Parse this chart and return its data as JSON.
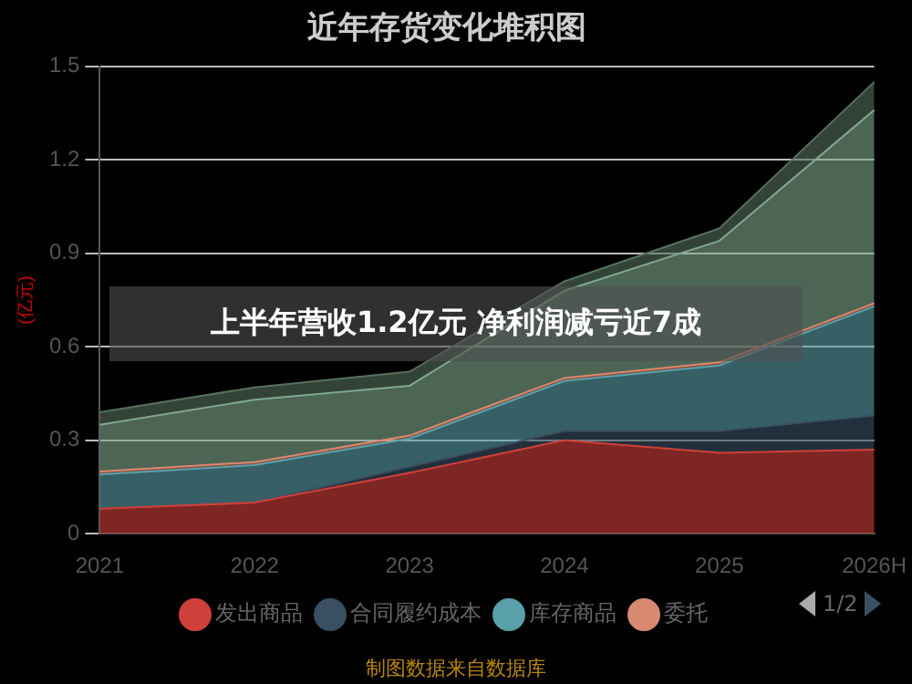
{
  "chart_data": {
    "type": "area",
    "stacked": true,
    "title": "近年存货变化堆积图",
    "ylabel": "(亿元)",
    "categories": [
      "2021",
      "2022",
      "2023",
      "2024",
      "2025",
      "2026H"
    ],
    "series": [
      {
        "name": "发出商品",
        "color": "#d0403a",
        "values": [
          0.08,
          0.1,
          0.195,
          0.3,
          0.26,
          0.27
        ]
      },
      {
        "name": "合同履约成本",
        "color": "#3a5062",
        "values": [
          0,
          0,
          0.02,
          0.03,
          0.07,
          0.11
        ]
      },
      {
        "name": "库存商品",
        "color": "#5aa0aa",
        "values": [
          0.11,
          0.12,
          0.09,
          0.16,
          0.21,
          0.35
        ]
      },
      {
        "name": "委托",
        "color": "#d88a70",
        "values": [
          0.01,
          0.01,
          0.01,
          0.01,
          0.01,
          0.01
        ]
      },
      {
        "color": "#7fa88e",
        "values": [
          0.15,
          0.2,
          0.16,
          0.28,
          0.39,
          0.62
        ]
      },
      {
        "color": "#56705e",
        "values": [
          0.04,
          0.04,
          0.045,
          0.03,
          0.04,
          0.09
        ]
      }
    ],
    "ylim": [
      0,
      1.5
    ],
    "yticks": [
      0,
      0.3,
      0.6,
      0.9,
      1.2,
      1.5
    ],
    "grid": "y",
    "legend": "bottom",
    "annotations": [
      "上半年营收1.2亿元 净利润减亏近7成",
      "制图数据来自数据库",
      "1/2"
    ]
  }
}
